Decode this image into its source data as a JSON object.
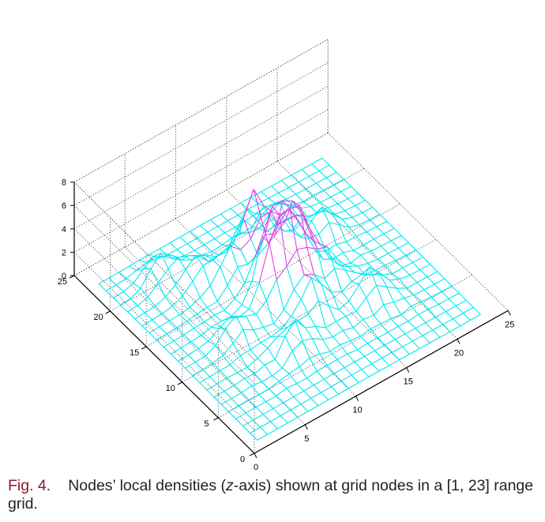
{
  "chart_data": {
    "type": "surface",
    "title": "",
    "xlabel": "",
    "ylabel": "",
    "zlabel": "",
    "x_range": [
      0,
      25
    ],
    "y_range": [
      0,
      25
    ],
    "z_range": [
      0,
      8
    ],
    "grid": true,
    "grid_nodes": [
      1,
      23
    ],
    "mesh_color": "#00e8f0",
    "peak_color": "#e040e8",
    "x_ticks": [
      "0",
      "5",
      "10",
      "15",
      "20",
      "25"
    ],
    "y_ticks": [
      "0",
      "5",
      "10",
      "15",
      "20",
      "25"
    ],
    "z_ticks": [
      "0",
      "2",
      "4",
      "6",
      "8"
    ],
    "peaks": [
      {
        "x": 12,
        "y": 17,
        "z": 5.8
      },
      {
        "x": 14,
        "y": 15,
        "z": 3.8
      },
      {
        "x": 11,
        "y": 13,
        "z": 5.0
      },
      {
        "x": 12.5,
        "y": 12,
        "z": 4.6
      },
      {
        "x": 13.5,
        "y": 13,
        "z": 3.4
      },
      {
        "x": 10,
        "y": 12,
        "z": 3.2
      },
      {
        "x": 12,
        "y": 9,
        "z": 3.0
      },
      {
        "x": 9,
        "y": 16,
        "z": 2.8
      },
      {
        "x": 15,
        "y": 11,
        "z": 2.6
      },
      {
        "x": 7,
        "y": 18,
        "z": 2.4
      },
      {
        "x": 5,
        "y": 20,
        "z": 2.4
      },
      {
        "x": 17,
        "y": 8,
        "z": 2.2
      },
      {
        "x": 9,
        "y": 7,
        "z": 2.2
      },
      {
        "x": 18,
        "y": 16,
        "z": 2.0
      },
      {
        "x": 6,
        "y": 11,
        "z": 1.8
      },
      {
        "x": 16,
        "y": 19,
        "z": 1.8
      }
    ]
  },
  "caption": {
    "label": "Fig. 4.",
    "text_before": "Nodes’ local densities (",
    "italic": "z",
    "text_after": "-axis) shown at grid nodes in a [1, 23] range grid."
  }
}
